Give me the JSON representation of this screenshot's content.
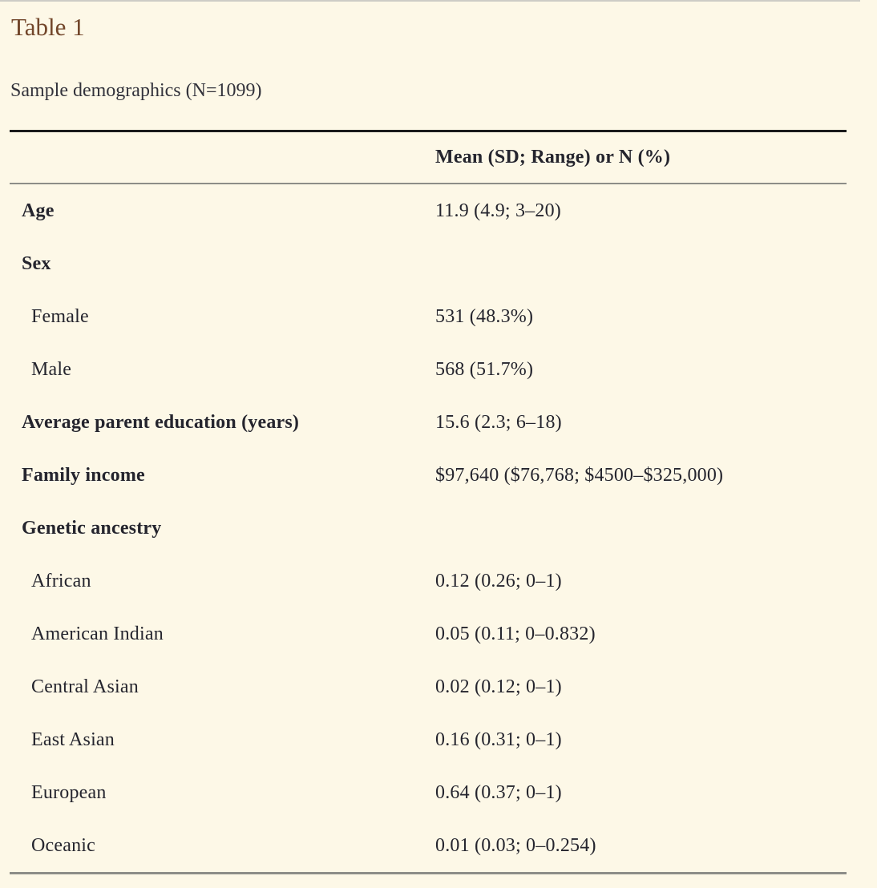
{
  "page": {
    "title": "Table 1",
    "subtitle": "Sample demographics (N=1099)"
  },
  "table": {
    "header": {
      "label_col": "",
      "value_col": "Mean (SD; Range) or N (%)"
    },
    "rows": [
      {
        "label": "Age",
        "value": "11.9 (4.9; 3–20)",
        "bold": true,
        "indent": false
      },
      {
        "label": "Sex",
        "value": "",
        "bold": true,
        "indent": false
      },
      {
        "label": "Female",
        "value": "531 (48.3%)",
        "bold": false,
        "indent": true
      },
      {
        "label": "Male",
        "value": "568 (51.7%)",
        "bold": false,
        "indent": true
      },
      {
        "label": "Average parent education (years)",
        "value": "15.6 (2.3; 6–18)",
        "bold": true,
        "indent": false
      },
      {
        "label": "Family income",
        "value": "$97,640 ($76,768; $4500–$325,000)",
        "bold": true,
        "indent": false
      },
      {
        "label": "Genetic ancestry",
        "value": "",
        "bold": true,
        "indent": false
      },
      {
        "label": "African",
        "value": "0.12 (0.26; 0–1)",
        "bold": false,
        "indent": true
      },
      {
        "label": "American Indian",
        "value": "0.05 (0.11; 0–0.832)",
        "bold": false,
        "indent": true
      },
      {
        "label": "Central Asian",
        "value": "0.02 (0.12; 0–1)",
        "bold": false,
        "indent": true
      },
      {
        "label": "East Asian",
        "value": "0.16 (0.31; 0–1)",
        "bold": false,
        "indent": true
      },
      {
        "label": "European",
        "value": "0.64 (0.37; 0–1)",
        "bold": false,
        "indent": true
      },
      {
        "label": "Oceanic",
        "value": "0.01 (0.03; 0–0.254)",
        "bold": false,
        "indent": true
      }
    ]
  },
  "colors": {
    "background": "#fdf8e7",
    "title_accent": "#72462a",
    "body_text": "#25252e",
    "rule_heavy": "#1b1b1b",
    "rule_light": "#8d8d88",
    "top_edge_line": "#cdccc6"
  }
}
